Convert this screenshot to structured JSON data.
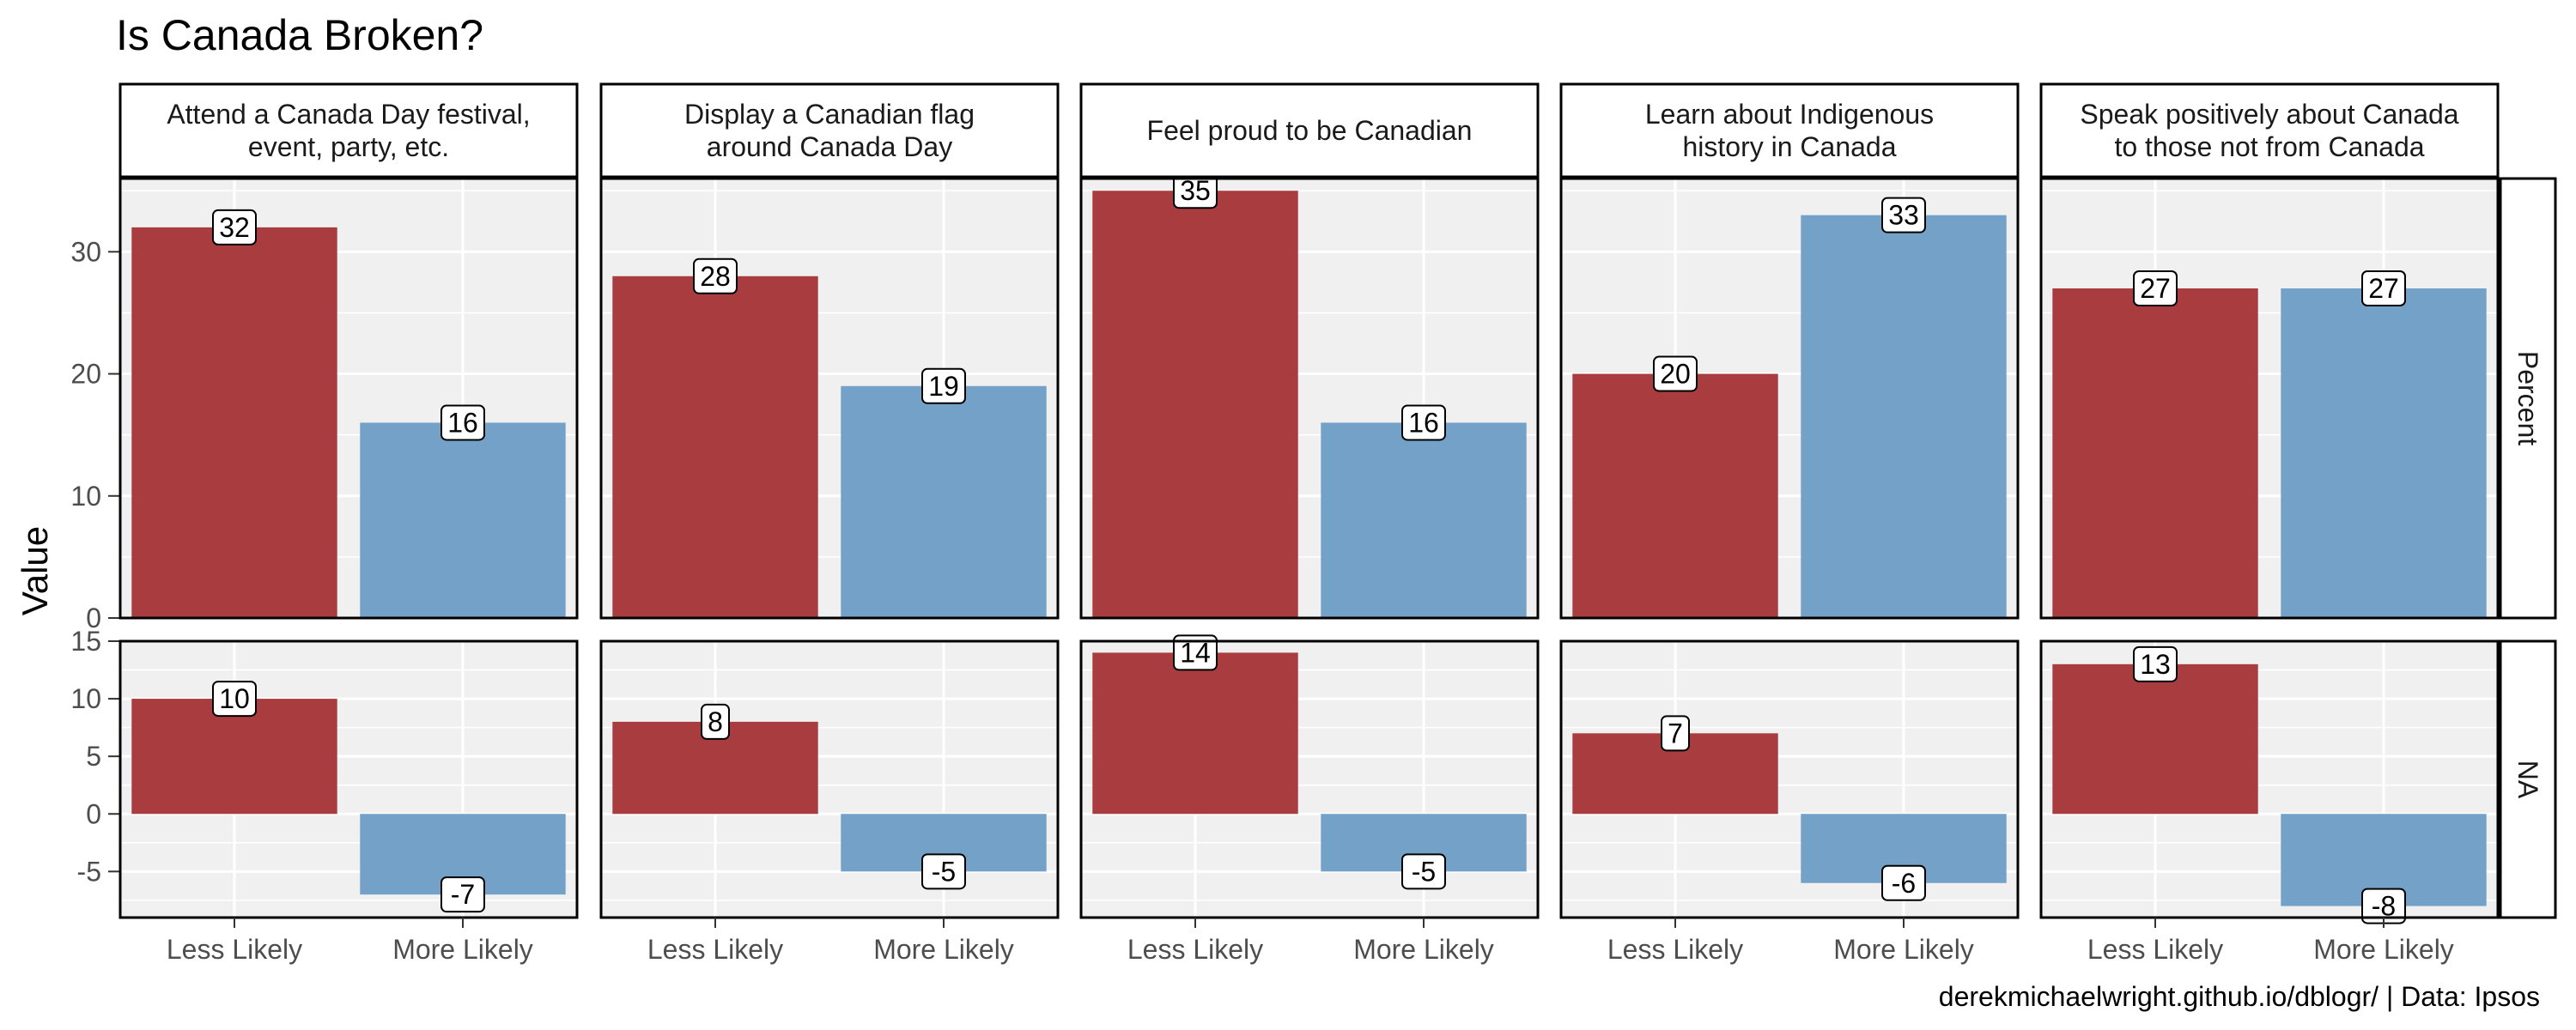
{
  "chart_data": {
    "type": "bar",
    "title": "Is Canada Broken?",
    "ylabel": "Value",
    "caption": "derekmichaelwright.github.io/dblogr/ | Data: Ipsos",
    "categories": [
      "Less Likely",
      "More Likely"
    ],
    "colors": {
      "Less Likely": "#a83c3e",
      "More Likely": "#73a1c8"
    },
    "facet_columns": [
      {
        "label": [
          "Attend a Canada Day festival,",
          "event, party, etc."
        ]
      },
      {
        "label": [
          "Display a Canadian flag",
          "around Canada Day"
        ]
      },
      {
        "label": [
          "Feel proud to be Canadian"
        ]
      },
      {
        "label": [
          "Learn about Indigenous",
          "history in Canada"
        ]
      },
      {
        "label": [
          "Speak positively about Canada",
          "to those not from Canada"
        ]
      }
    ],
    "facet_rows": [
      {
        "label": "Percent",
        "ylim": [
          0,
          36
        ],
        "ticks": [
          0,
          10,
          20,
          30
        ],
        "values": [
          [
            32,
            16
          ],
          [
            28,
            19
          ],
          [
            35,
            16
          ],
          [
            20,
            33
          ],
          [
            27,
            27
          ]
        ]
      },
      {
        "label": "NA",
        "ylim": [
          -9,
          15
        ],
        "ticks": [
          -5,
          0,
          5,
          10,
          15
        ],
        "values": [
          [
            10,
            -7
          ],
          [
            8,
            -5
          ],
          [
            14,
            -5
          ],
          [
            7,
            -6
          ],
          [
            13,
            -8
          ]
        ]
      }
    ],
    "grid": true,
    "legend": "none"
  }
}
